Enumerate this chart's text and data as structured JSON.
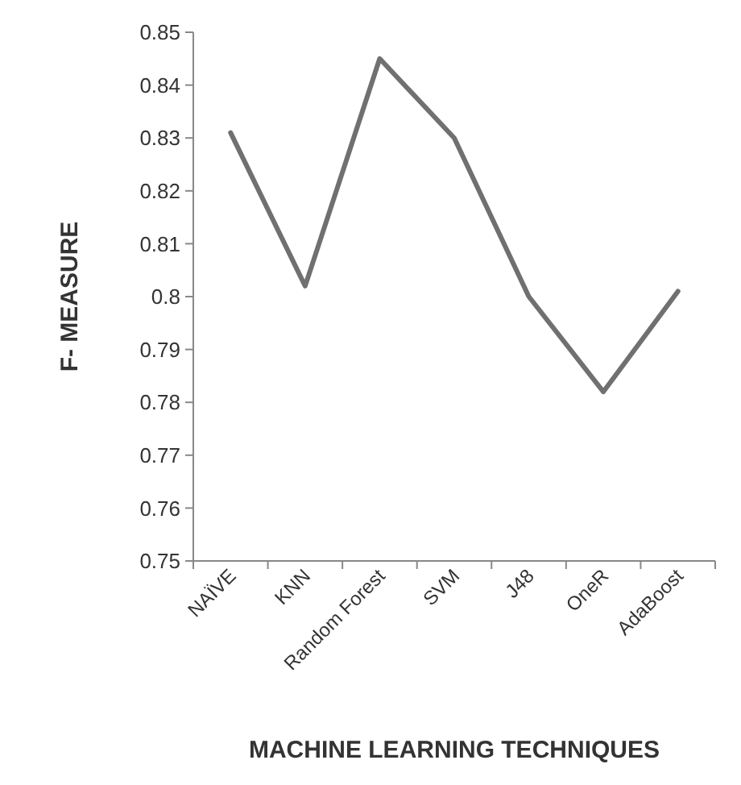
{
  "chart_data": {
    "type": "line",
    "xlabel": "MACHINE LEARNING TECHNIQUES",
    "ylabel": "F- MEASURE",
    "categories": [
      "NAÏVE",
      "KNN",
      "Random Forest",
      "SVM",
      "J48",
      "OneR",
      "AdaBoost"
    ],
    "series": [
      {
        "color": "#707070",
        "values": [
          0.831,
          0.802,
          0.845,
          0.83,
          0.8,
          0.782,
          0.801
        ]
      }
    ],
    "ylim": [
      0.75,
      0.85
    ],
    "yticks": [
      0.75,
      0.76,
      0.77,
      0.78,
      0.79,
      0.8,
      0.81,
      0.82,
      0.83,
      0.84,
      0.85
    ],
    "grid": false,
    "marker": "none",
    "line_style": "solid"
  }
}
